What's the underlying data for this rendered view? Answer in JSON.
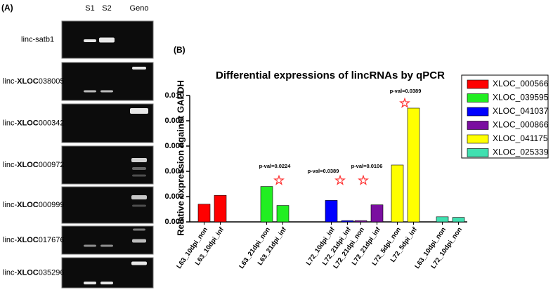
{
  "panel_a": {
    "label": "(A)",
    "lanes": [
      "S1",
      "S2",
      "Geno"
    ],
    "genes": [
      {
        "prefix": "linc-satb1",
        "bold": "",
        "suffix": ""
      },
      {
        "prefix": "linc-",
        "bold": "XLOC",
        "suffix": "038005"
      },
      {
        "prefix": "linc-",
        "bold": "XLOC",
        "suffix": "000342"
      },
      {
        "prefix": "linc-",
        "bold": "XLOC",
        "suffix": "000972"
      },
      {
        "prefix": "linc-",
        "bold": "XLOC",
        "suffix": "000999"
      },
      {
        "prefix": "linc-",
        "bold": "XLOC",
        "suffix": "017676"
      },
      {
        "prefix": "linc-",
        "bold": "XLOC",
        "suffix": "035296"
      }
    ]
  },
  "chart_data": {
    "type": "bar",
    "panel_label": "(B)",
    "title": "Differential expressions of lincRNAs by qPCR",
    "y_label": "Relative expression against GAPDH",
    "categories": [
      "L63_10dpi_non",
      "L63_10dpi_inf",
      "L63_21dpi_non",
      "L63_21dpi_inf",
      "L72_10dpi_inf",
      "L72_21dpi_inf",
      "L72_21dpi_non",
      "L72_21dpi_inf",
      "L72_5dpi_non",
      "L72_5dpi_inf",
      "L63_10dpi_non",
      "L72_10dpi_non"
    ],
    "series": [
      {
        "name": "XLOC_000566",
        "color": "#ff0000",
        "values": [
          0.0014,
          0.0021,
          null,
          null,
          null,
          null,
          null,
          null,
          null,
          null,
          null,
          null
        ]
      },
      {
        "name": "XLOC_039595",
        "color": "#22ee22",
        "values": [
          null,
          null,
          0.0028,
          0.0013,
          null,
          null,
          null,
          null,
          null,
          null,
          null,
          null
        ]
      },
      {
        "name": "XLOC_041037",
        "color": "#0000ff",
        "values": [
          null,
          null,
          null,
          null,
          0.0017,
          0.0001,
          null,
          null,
          null,
          null,
          null,
          null
        ]
      },
      {
        "name": "XLOC_000866",
        "color": "#7a0fa0",
        "values": [
          null,
          null,
          null,
          null,
          null,
          null,
          0.0001,
          0.00135,
          null,
          null,
          null,
          null
        ]
      },
      {
        "name": "XLOC_041175",
        "color": "#ffff00",
        "values": [
          null,
          null,
          null,
          null,
          null,
          null,
          null,
          null,
          0.0045,
          0.009,
          null,
          null
        ]
      },
      {
        "name": "XLOC_025339",
        "color": "#40e0b0",
        "values": [
          null,
          null,
          null,
          null,
          null,
          null,
          null,
          null,
          null,
          null,
          0.0004,
          0.00035
        ]
      }
    ],
    "ylim": [
      0,
      0.01
    ],
    "yticks": [
      {
        "value": 0,
        "label": "0.000"
      },
      {
        "value": 0.002,
        "label": "0.002"
      },
      {
        "value": 0.004,
        "label": "0.004"
      },
      {
        "value": 0.006,
        "label": "0.006"
      },
      {
        "value": 0.008,
        "label": "0.008"
      },
      {
        "value": 0.01,
        "label": "0.010"
      }
    ],
    "annotations": [
      "p-val=0.0224",
      "p-val=0.0389",
      "p-val=0.0106",
      "p-val=0.0389"
    ],
    "legend": "right"
  }
}
